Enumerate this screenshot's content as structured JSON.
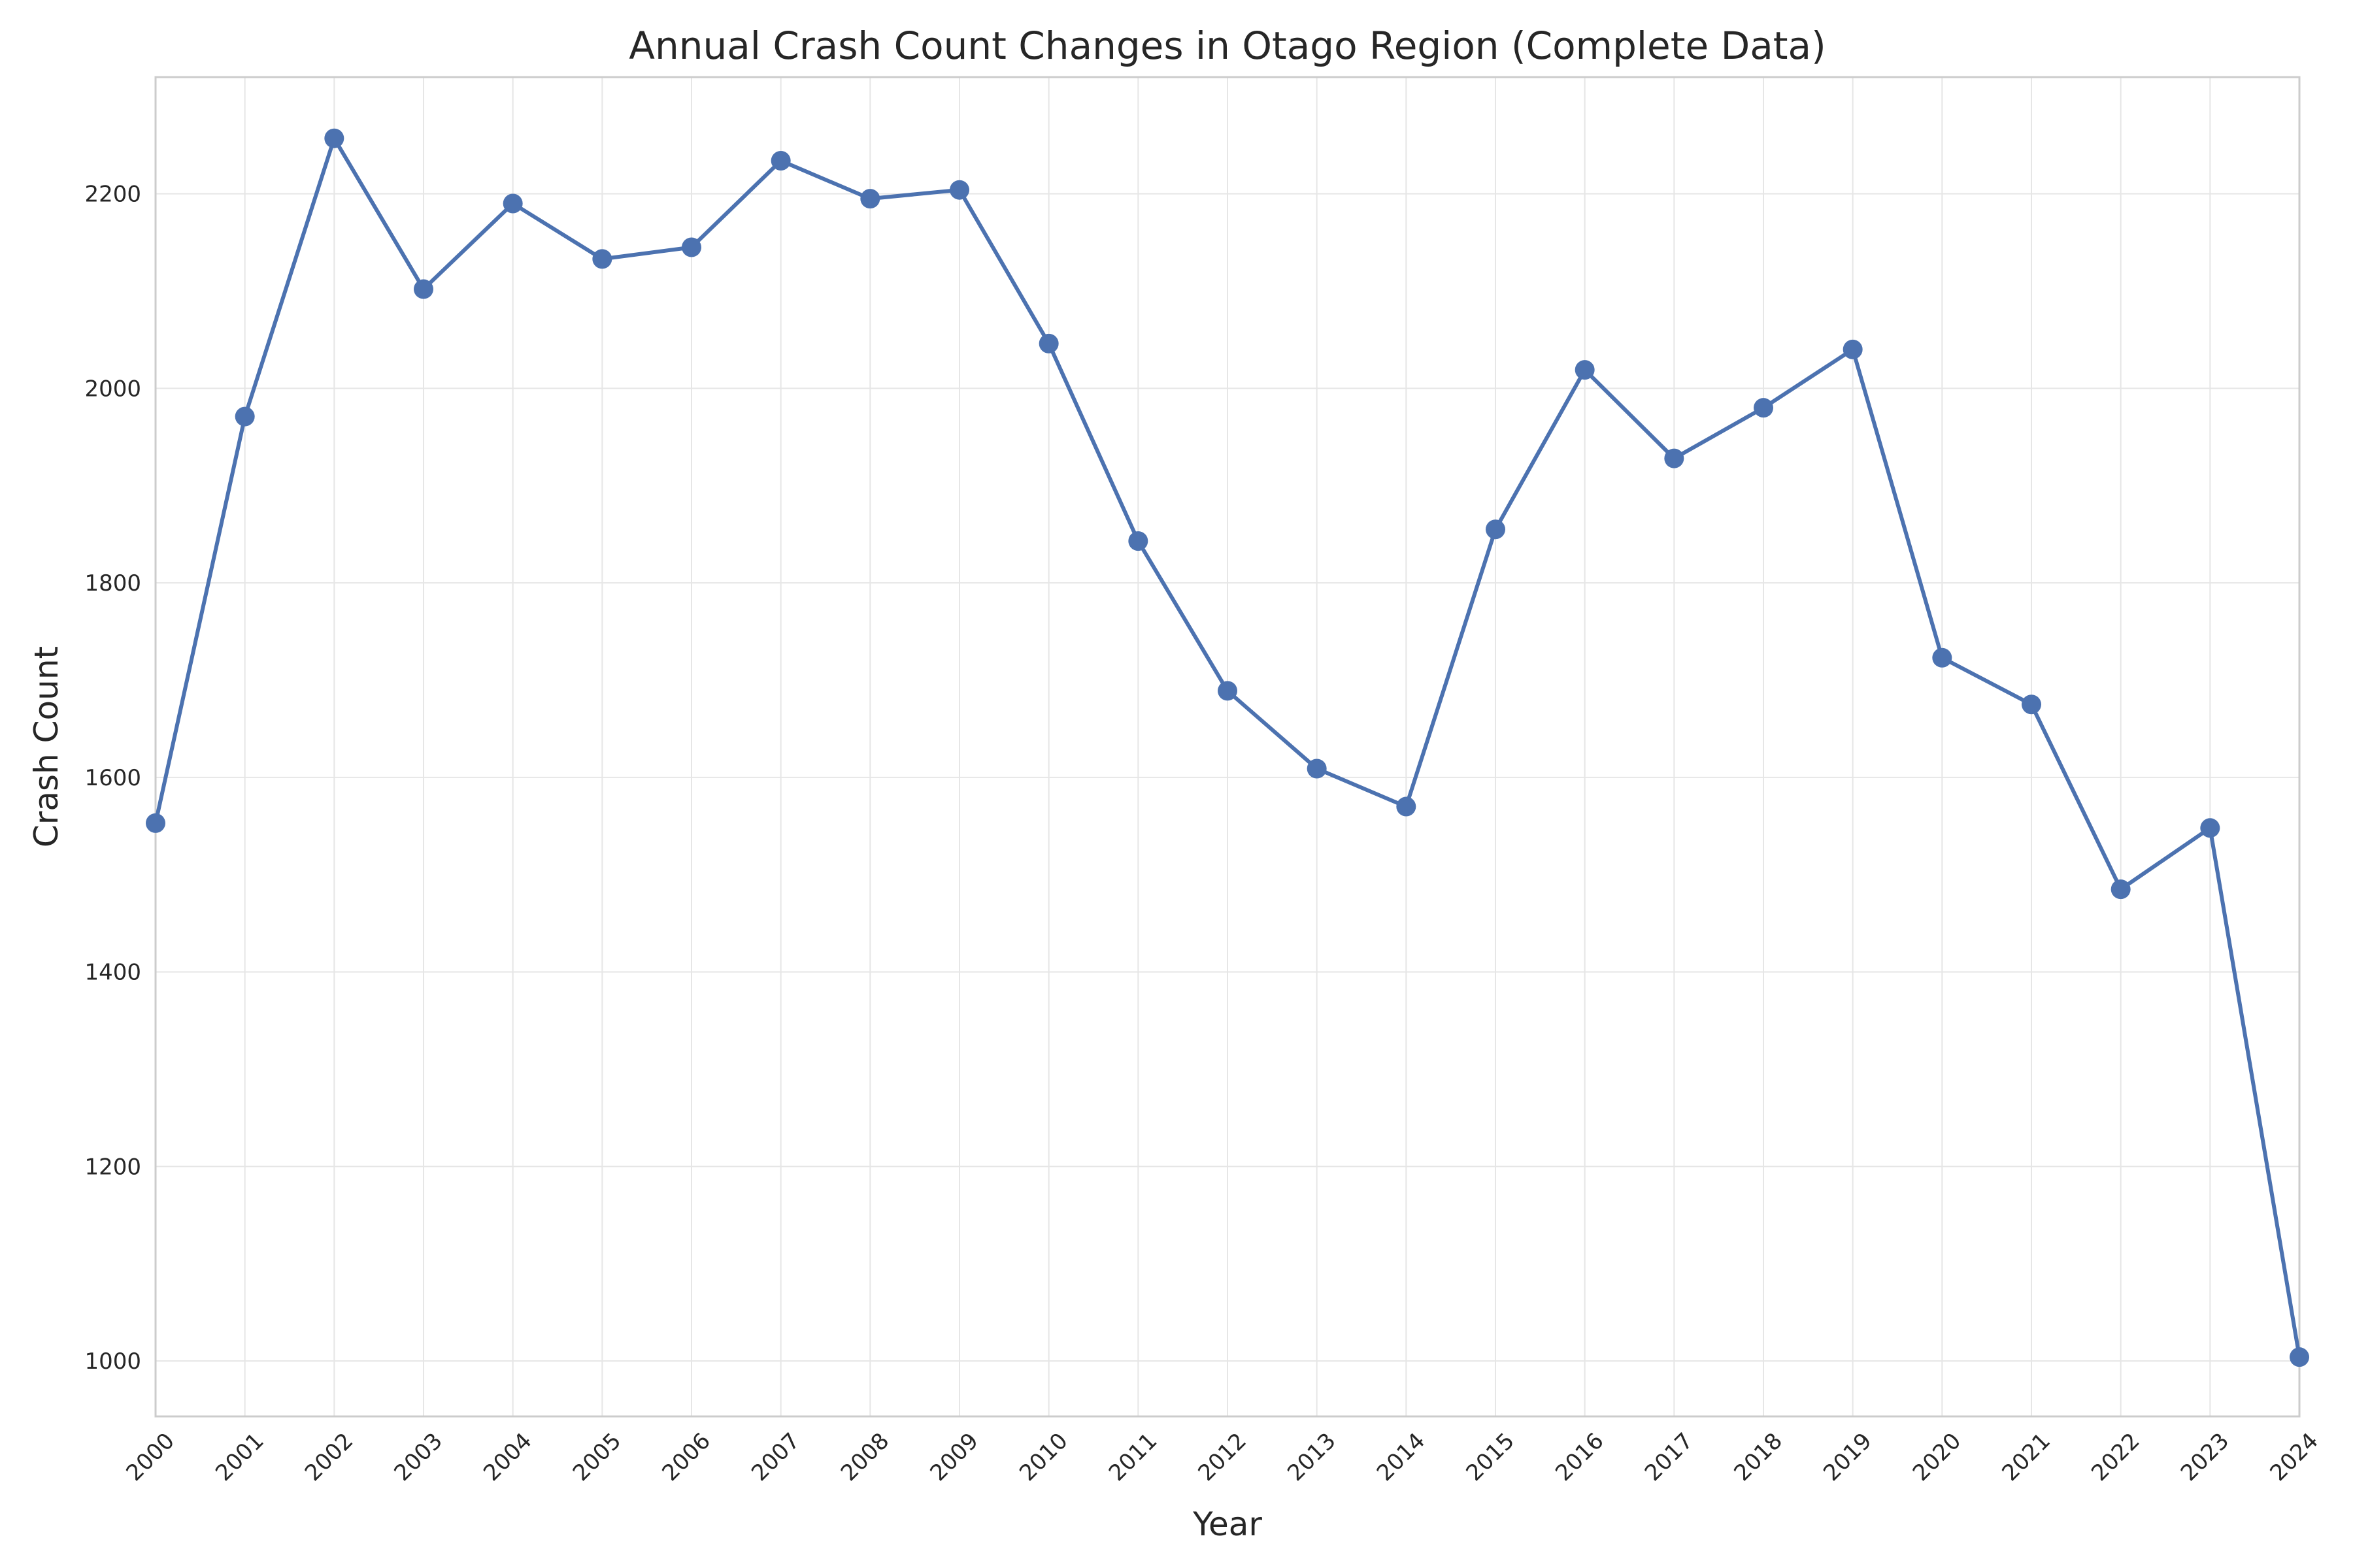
{
  "chart_data": {
    "type": "line",
    "title": "Annual Crash Count Changes in Otago Region (Complete Data)",
    "xlabel": "Year",
    "ylabel": "Crash Count",
    "x": [
      2000,
      2001,
      2002,
      2003,
      2004,
      2005,
      2006,
      2007,
      2008,
      2009,
      2010,
      2011,
      2012,
      2013,
      2014,
      2015,
      2016,
      2017,
      2018,
      2019,
      2020,
      2021,
      2022,
      2023,
      2024
    ],
    "series": [
      {
        "values": [
          1553,
          1971,
          2257,
          2102,
          2190,
          2133,
          2145,
          2234,
          2195,
          2204,
          2046,
          1843,
          1689,
          1609,
          1570,
          1855,
          2019,
          1928,
          1980,
          2040,
          1723,
          1675,
          1485,
          1548,
          1004
        ],
        "color": "#4c72b0",
        "marker": "circle"
      }
    ],
    "xlim": [
      2000,
      2024
    ],
    "ylim": [
      943,
      2320
    ],
    "yticks": [
      1000,
      1200,
      1400,
      1600,
      1800,
      2000,
      2200
    ],
    "xticks": [
      2000,
      2001,
      2002,
      2003,
      2004,
      2005,
      2006,
      2007,
      2008,
      2009,
      2010,
      2011,
      2012,
      2013,
      2014,
      2015,
      2016,
      2017,
      2018,
      2019,
      2020,
      2021,
      2022,
      2023,
      2024
    ],
    "grid": true,
    "legend": "none"
  }
}
